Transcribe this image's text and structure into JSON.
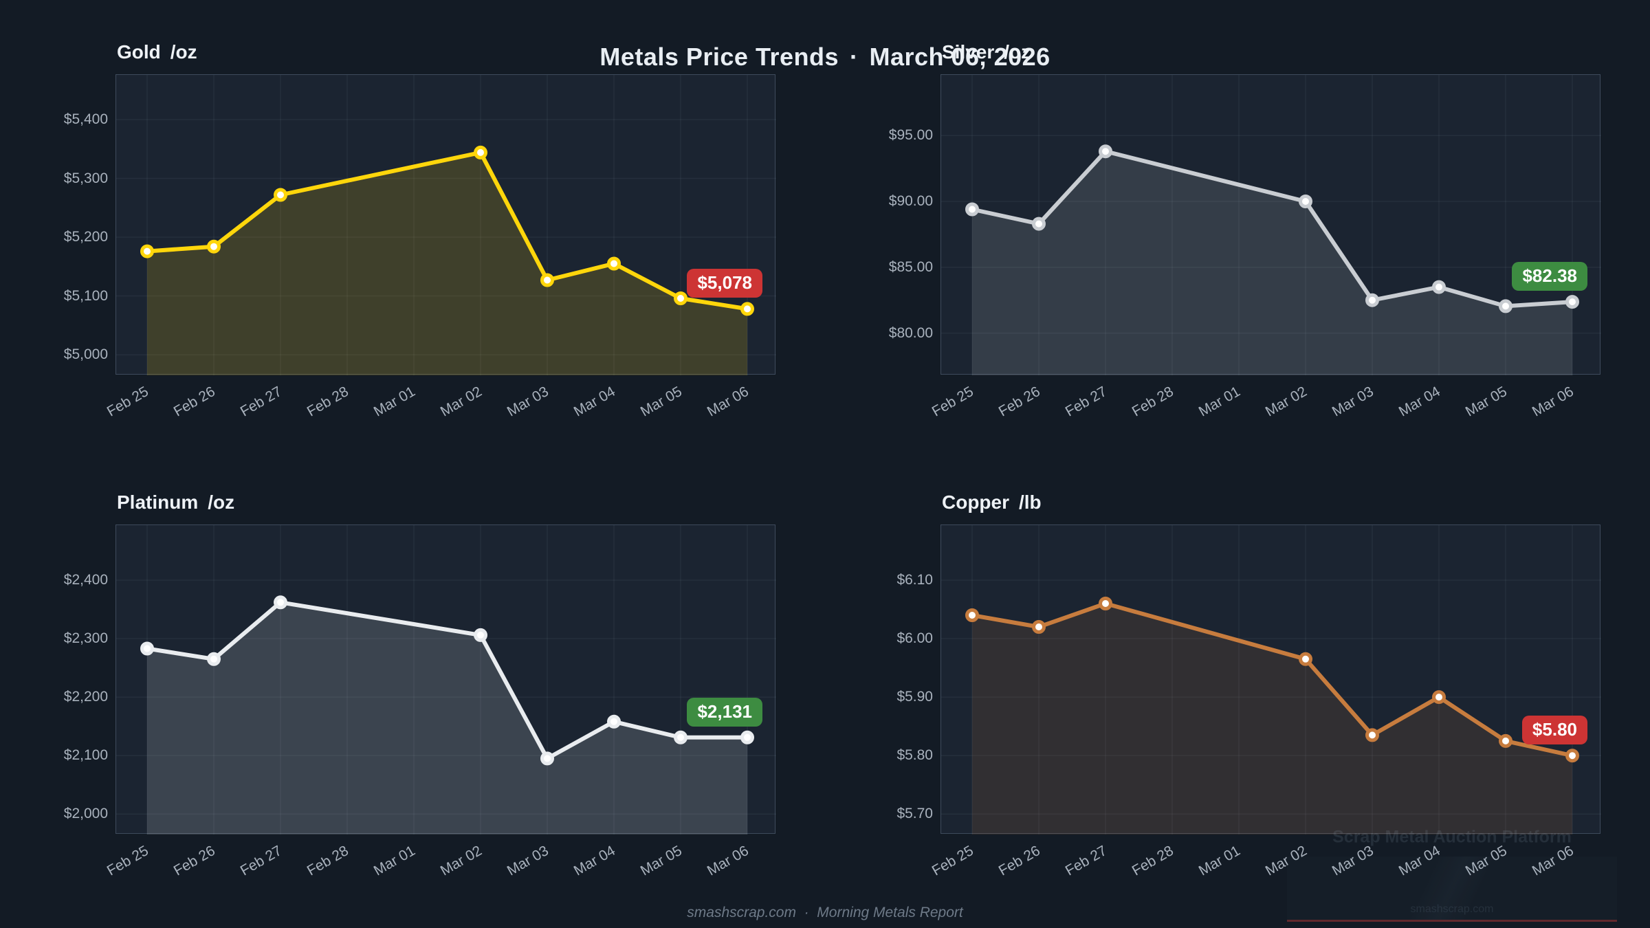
{
  "page": {
    "title_left": "Metals Price Trends",
    "title_sep": "·",
    "title_right": "March 06, 2026",
    "footer": "smashscrap.com  ·  Morning Metals Report",
    "background": "#131b25",
    "panel_background": "#1b2431"
  },
  "watermark": {
    "plot_text": "Scrap Metal Auction Platform",
    "corner_text": "smashscrap.com"
  },
  "x_axis_ticks": [
    "Feb 25",
    "Feb 26",
    "Feb 27",
    "Feb 28",
    "Mar 01",
    "Mar 02",
    "Mar 03",
    "Mar 04",
    "Mar 05",
    "Mar 06"
  ],
  "chart_data": [
    {
      "type": "line",
      "title": "Gold",
      "unit": "/oz",
      "x": [
        "Feb 25",
        "Feb 26",
        "Feb 27",
        "Mar 02",
        "Mar 03",
        "Mar 04",
        "Mar 05",
        "Mar 06"
      ],
      "x_tick_indices": [
        0,
        1,
        2,
        5,
        6,
        7,
        8,
        9
      ],
      "values": [
        5176,
        5184,
        5272,
        5344,
        5127,
        5155,
        5096,
        5078
      ],
      "y_tick_labels": [
        "$5,000",
        "$5,100",
        "$5,200",
        "$5,300",
        "$5,400"
      ],
      "y_tick_values": [
        5000,
        5100,
        5200,
        5300,
        5400
      ],
      "ylim": [
        4965,
        5476
      ],
      "grid": true,
      "legend": "none",
      "last_price_label": "$5,078",
      "badge_color": "#cd3434",
      "line_color": "#ffd60b",
      "marker_color": "#ffffff",
      "fill_opacity": 0.16
    },
    {
      "type": "line",
      "title": "Silver",
      "unit": "/oz",
      "x": [
        "Feb 25",
        "Feb 26",
        "Feb 27",
        "Mar 02",
        "Mar 03",
        "Mar 04",
        "Mar 05",
        "Mar 06"
      ],
      "x_tick_indices": [
        0,
        1,
        2,
        5,
        6,
        7,
        8,
        9
      ],
      "values": [
        89.4,
        88.3,
        93.8,
        90.0,
        82.5,
        83.5,
        82.05,
        82.38
      ],
      "y_tick_labels": [
        "$80.00",
        "$85.00",
        "$90.00",
        "$95.00"
      ],
      "y_tick_values": [
        80,
        85,
        90,
        95
      ],
      "ylim": [
        76.8,
        99.6
      ],
      "grid": true,
      "legend": "none",
      "last_price_label": "$82.38",
      "badge_color": "#3d8c41",
      "line_color": "#c9cdd2",
      "marker_color": "#ffffff",
      "fill_opacity": 0.15
    },
    {
      "type": "line",
      "title": "Platinum",
      "unit": "/oz",
      "x": [
        "Feb 25",
        "Feb 26",
        "Feb 27",
        "Mar 02",
        "Mar 03",
        "Mar 04",
        "Mar 05",
        "Mar 06"
      ],
      "x_tick_indices": [
        0,
        1,
        2,
        5,
        6,
        7,
        8,
        9
      ],
      "values": [
        2283,
        2265,
        2362,
        2306,
        2095,
        2158,
        2131,
        2131
      ],
      "y_tick_labels": [
        "$2,000",
        "$2,100",
        "$2,200",
        "$2,300",
        "$2,400"
      ],
      "y_tick_values": [
        2000,
        2100,
        2200,
        2300,
        2400
      ],
      "ylim": [
        1965,
        2494
      ],
      "grid": true,
      "legend": "none",
      "last_price_label": "$2,131",
      "badge_color": "#3d8c41",
      "line_color": "#e9ecef",
      "marker_color": "#ffffff",
      "fill_opacity": 0.16
    },
    {
      "type": "line",
      "title": "Copper",
      "unit": "/lb",
      "x": [
        "Feb 25",
        "Feb 26",
        "Feb 27",
        "Mar 02",
        "Mar 03",
        "Mar 04",
        "Mar 05",
        "Mar 06"
      ],
      "x_tick_indices": [
        0,
        1,
        2,
        5,
        6,
        7,
        8,
        9
      ],
      "values": [
        6.04,
        6.02,
        6.06,
        5.965,
        5.835,
        5.9,
        5.825,
        5.8
      ],
      "y_tick_labels": [
        "$5.70",
        "$5.80",
        "$5.90",
        "$6.00",
        "$6.10"
      ],
      "y_tick_values": [
        5.7,
        5.8,
        5.9,
        6.0,
        6.1
      ],
      "ylim": [
        5.665,
        6.194
      ],
      "grid": true,
      "legend": "none",
      "last_price_label": "$5.80",
      "badge_color": "#cd3434",
      "line_color": "#c77c3e",
      "marker_color": "#ffffff",
      "fill_opacity": 0.13
    }
  ]
}
